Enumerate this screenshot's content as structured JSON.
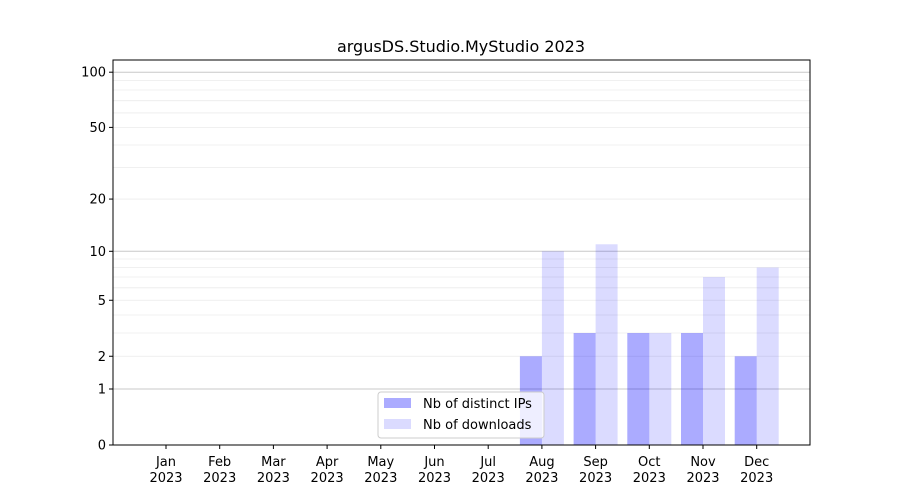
{
  "chart_data": {
    "type": "bar",
    "title": "argusDS.Studio.MyStudio 2023",
    "xlabel": "",
    "ylabel": "",
    "yscale": "log(1+y)",
    "ylim": [
      0,
      120
    ],
    "y_ticks": [
      0,
      1,
      2,
      5,
      10,
      20,
      50,
      100
    ],
    "grid": "major and minor horizontal",
    "legend_position": "lower-center",
    "categories": [
      "Jan\n2023",
      "Feb\n2023",
      "Mar\n2023",
      "Apr\n2023",
      "May\n2023",
      "Jun\n2023",
      "Jul\n2023",
      "Aug\n2023",
      "Sep\n2023",
      "Oct\n2023",
      "Nov\n2023",
      "Dec\n2023"
    ],
    "series": [
      {
        "name": "Nb of distinct IPs",
        "color": "#aaaaf9",
        "values": [
          0,
          0,
          0,
          0,
          0,
          0,
          0,
          2,
          3,
          3,
          3,
          2
        ]
      },
      {
        "name": "Nb of downloads",
        "color": "#dcdcfb",
        "values": [
          0,
          0,
          0,
          0,
          0,
          0,
          0,
          10,
          11,
          3,
          7,
          8
        ]
      }
    ]
  }
}
